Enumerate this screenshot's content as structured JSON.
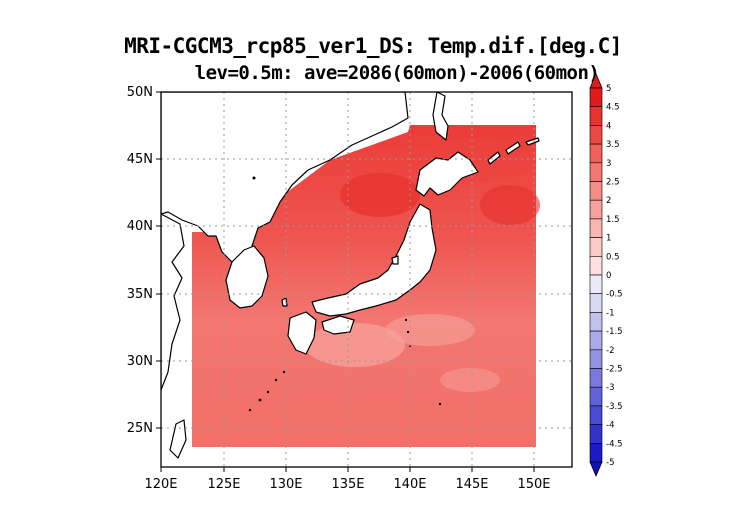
{
  "title_line1": "MRI-CGCM3_rcp85_ver1_DS: Temp.dif.[deg.C]",
  "title_line2": "lev=0.5m: ave=2086(60mon)-2006(60mon)",
  "map": {
    "lon_range": [
      120,
      153
    ],
    "lat_range": [
      22,
      50
    ],
    "lon_ticks": [
      "120E",
      "125E",
      "130E",
      "135E",
      "140E",
      "145E",
      "150E"
    ],
    "lat_ticks": [
      "25N",
      "30N",
      "35N",
      "40N",
      "45N",
      "50N"
    ],
    "grid": true,
    "data_region": "sea areas 122.5E-150E, 23.5N-47.5N"
  },
  "colorbar": {
    "labels": [
      "5",
      "4.5",
      "4",
      "3.5",
      "3",
      "2.5",
      "2",
      "1.5",
      "1",
      "0.5",
      "0",
      "-0.5",
      "-1",
      "-1.5",
      "-2",
      "-2.5",
      "-3",
      "-3.5",
      "-4",
      "-4.5",
      "-5"
    ],
    "colors": [
      "#e31a1c",
      "#e7332f",
      "#eb4a44",
      "#ef6159",
      "#f2776f",
      "#f58c85",
      "#f7a19b",
      "#f9b5b0",
      "#fbc9c6",
      "#fde0de",
      "#ebebf8",
      "#d8d8f4",
      "#c1c1ee",
      "#aaaaea",
      "#9292e4",
      "#7a7ade",
      "#6262d8",
      "#4a4ad2",
      "#3333cc",
      "#1a1ac6"
    ],
    "top_color": "#e31a1c",
    "bottom_color": "#1010c0"
  },
  "colors": {
    "sea_dark": "#ee4c46",
    "sea_mid": "#f26a62",
    "sea_light": "#f6938c",
    "land": "#ffffff",
    "coast": "#000000",
    "grid": "#9a9a9a"
  }
}
